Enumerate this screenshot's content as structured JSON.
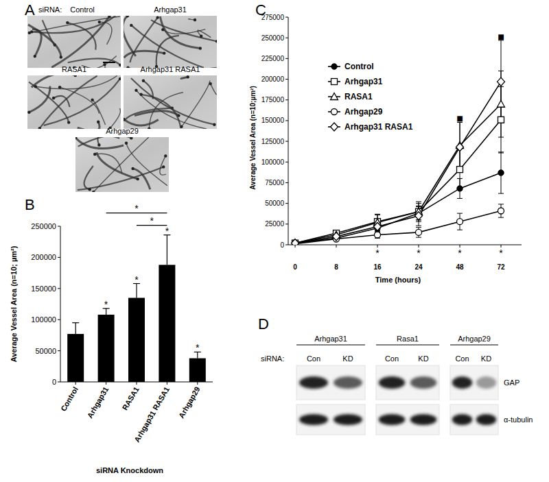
{
  "panels": {
    "A": {
      "panel_label": "A",
      "prefix": "siRNA:",
      "images": [
        {
          "label": "Control"
        },
        {
          "label": "Arhgap31"
        },
        {
          "label": "RASA1"
        },
        {
          "label": "Arhgap31 RASA1"
        },
        {
          "label": "Arhgap29"
        }
      ]
    },
    "D": {
      "panel_label": "D",
      "prefix": "siRNA:",
      "groups": [
        {
          "name": "Arhgap31",
          "lanes": [
            "Con",
            "KD"
          ]
        },
        {
          "name": "Rasa1",
          "lanes": [
            "Con",
            "KD"
          ]
        },
        {
          "name": "Arhgap29",
          "lanes": [
            "Con",
            "KD"
          ]
        }
      ],
      "rows": [
        "GAP",
        "α-tubulin"
      ]
    }
  },
  "chart_data": [
    {
      "type": "bar",
      "panel_label": "B",
      "y_label": "Average Vessel Area (n=10; µm²)",
      "x_label": "siRNA Knockdown",
      "categories": [
        "Control",
        "Arhgap31",
        "RASA1",
        "Arhgap31 RASA1",
        "Arhgap29"
      ],
      "values": [
        77000,
        108000,
        135000,
        188000,
        38000
      ],
      "errors": [
        18000,
        10000,
        23000,
        48000,
        10000
      ],
      "color": "#000000",
      "ylim": [
        0,
        250000
      ],
      "yticks": [
        0,
        50000,
        100000,
        150000,
        200000,
        250000
      ],
      "star_labels": [
        null,
        "*",
        "*",
        "*",
        "*"
      ],
      "significance": [
        {
          "from": "Arhgap31",
          "to": "Arhgap31 RASA1",
          "label": "*"
        },
        {
          "from": "RASA1",
          "to": "Arhgap31 RASA1",
          "label": "*"
        }
      ]
    },
    {
      "type": "line",
      "panel_label": "C",
      "y_label": "Average Vessel Area (n=10;µm²)",
      "x_label": "Time (hours)",
      "categories": [
        "0",
        "8",
        "16",
        "24",
        "48",
        "72"
      ],
      "series": [
        {
          "name": "Control",
          "color": "#000000",
          "marker": "filled_circle",
          "values": [
            2000,
            8000,
            20000,
            38000,
            68000,
            87000
          ],
          "errors": [
            1000,
            2000,
            5000,
            8000,
            12000,
            25000
          ]
        },
        {
          "name": "Arhgap31",
          "color": "#000000",
          "marker": "square",
          "values": [
            2000,
            14000,
            28000,
            40000,
            91000,
            151000
          ],
          "errors": [
            1000,
            3000,
            8000,
            10000,
            25000,
            40000
          ]
        },
        {
          "name": "RASA1",
          "color": "#000000",
          "marker": "triangle",
          "values": [
            2000,
            12000,
            27000,
            40000,
            120000,
            170000
          ],
          "errors": [
            1000,
            3000,
            10000,
            12000,
            28000,
            40000
          ]
        },
        {
          "name": "Arhgap29",
          "color": "#000000",
          "marker": "circle",
          "values": [
            1000,
            7000,
            12000,
            15000,
            28000,
            41000
          ],
          "errors": [
            500,
            2000,
            4000,
            6000,
            10000,
            8000
          ]
        },
        {
          "name": "Arhgap31 RASA1",
          "color": "#000000",
          "marker": "diamond",
          "values": [
            2000,
            10000,
            22000,
            35000,
            118000,
            197000
          ],
          "errors": [
            1000,
            2000,
            5000,
            12000,
            30000,
            50000
          ]
        }
      ],
      "ylim": [
        0,
        275000
      ],
      "yticks": [
        0,
        25000,
        50000,
        75000,
        100000,
        125000,
        150000,
        175000,
        200000,
        225000,
        250000,
        275000
      ],
      "legend": "upper-left",
      "star_labels": [
        null,
        null,
        "*",
        "*",
        "*",
        "*"
      ],
      "annotations": [
        {
          "text": "■",
          "x": "48",
          "y": 153000
        },
        {
          "text": "■",
          "x": "72",
          "y": 252000
        }
      ]
    }
  ]
}
